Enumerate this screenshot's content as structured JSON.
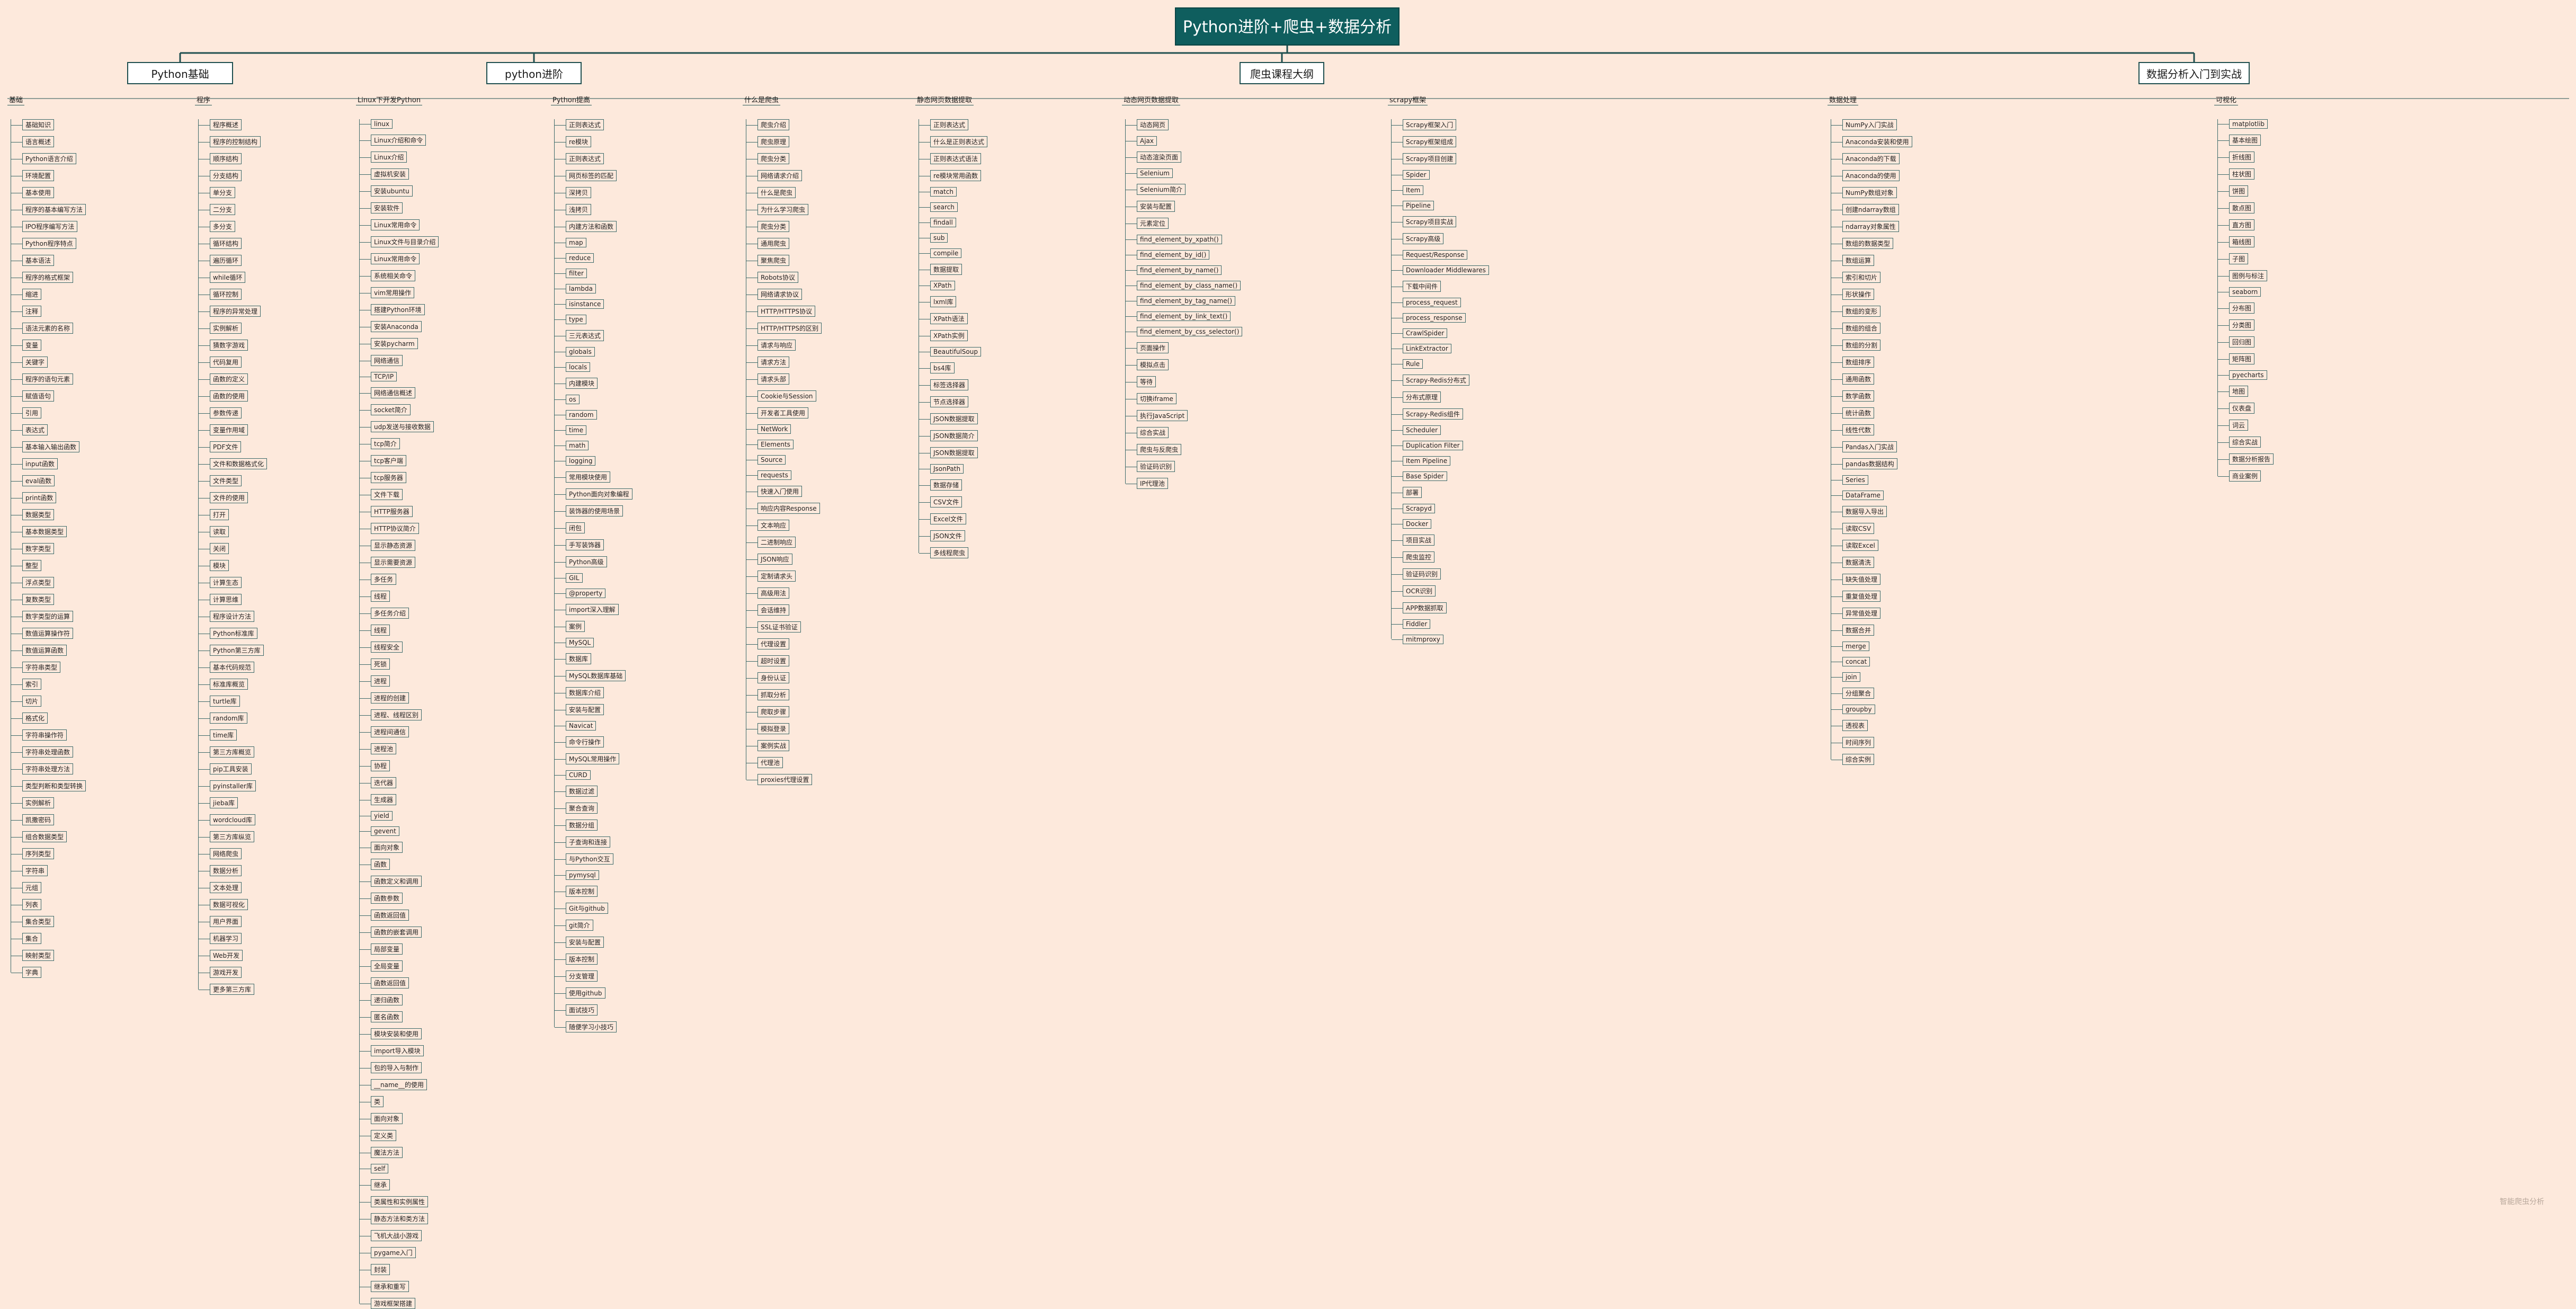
{
  "title": "Python进阶+爬虫+数据分析",
  "topics": [
    {
      "label": "Python基础"
    },
    {
      "label": "python进阶"
    },
    {
      "label": "爬虫课程大纲"
    },
    {
      "label": "数据分析入门到实战"
    }
  ],
  "columns": [
    {
      "head": "基础",
      "items": [
        "基础知识",
        "语言概述",
        "Python语言介绍",
        "环境配置",
        "基本使用",
        "程序的基本编写方法",
        "IPO程序编写方法",
        "Python程序特点",
        "基本语法",
        "程序的格式框架",
        "缩进",
        "注释",
        "语法元素的名称",
        "变量",
        "关键字",
        "程序的语句元素",
        "赋值语句",
        "引用",
        "表达式",
        "基本输入输出函数",
        "input函数",
        "eval函数",
        "print函数",
        "数据类型",
        "基本数据类型",
        "数字类型",
        "整型",
        "浮点类型",
        "复数类型",
        "数字类型的运算",
        "数值运算操作符",
        "数值运算函数",
        "字符串类型",
        "索引",
        "切片",
        "格式化",
        "字符串操作符",
        "字符串处理函数",
        "字符串处理方法",
        "类型判断和类型转换",
        "实例解析",
        "凯撒密码",
        "组合数据类型",
        "序列类型",
        "字符串",
        "元组",
        "列表",
        "集合类型",
        "集合",
        "映射类型",
        "字典"
      ]
    },
    {
      "head": "程序",
      "items": [
        "程序概述",
        "程序的控制结构",
        "顺序结构",
        "分支结构",
        "单分支",
        "二分支",
        "多分支",
        "循环结构",
        "遍历循环",
        "while循环",
        "循环控制",
        "程序的异常处理",
        "实例解析",
        "猜数字游戏",
        "代码复用",
        "函数的定义",
        "函数的使用",
        "参数传递",
        "变量作用域",
        "PDF文件",
        "文件和数据格式化",
        "文件类型",
        "文件的使用",
        "打开",
        "读取",
        "关闭",
        "模块",
        "计算生态",
        "计算思维",
        "程序设计方法",
        "Python标准库",
        "Python第三方库",
        "基本代码规范",
        "标准库概览",
        "turtle库",
        "random库",
        "time库",
        "第三方库概览",
        "pip工具安装",
        "pyinstaller库",
        "jieba库",
        "wordcloud库",
        "第三方库纵览",
        "网络爬虫",
        "数据分析",
        "文本处理",
        "数据可视化",
        "用户界面",
        "机器学习",
        "Web开发",
        "游戏开发",
        "更多第三方库"
      ]
    },
    {
      "head": "Linux下开发Python",
      "items": [
        "linux",
        "Linux介绍和命令",
        "Linux介绍",
        "虚拟机安装",
        "安装ubuntu",
        "安装软件",
        "Linux常用命令",
        "Linux文件与目录介绍",
        "Linux常用命令",
        "系统相关命令",
        "vim常用操作",
        "搭建Python环境",
        "安装Anaconda",
        "安装pycharm",
        "网络通信",
        "TCP/IP",
        "网络通信概述",
        "socket简介",
        "udp发送与接收数据",
        "tcp简介",
        "tcp客户端",
        "tcp服务器",
        "文件下载",
        "HTTP服务器",
        "HTTP协议简介",
        "显示静态资源",
        "显示需要资源",
        "多任务",
        "线程",
        "多任务介绍",
        "线程",
        "线程安全",
        "死锁",
        "进程",
        "进程的创建",
        "进程、线程区别",
        "进程间通信",
        "进程池",
        "协程",
        "迭代器",
        "生成器",
        "yield",
        "gevent",
        "面向对象",
        "函数",
        "函数定义和调用",
        "函数参数",
        "函数返回值",
        "函数的嵌套调用",
        "局部变量",
        "全局变量",
        "函数返回值",
        "递归函数",
        "匿名函数",
        "模块安装和使用",
        "import导入模块",
        "包的导入与制作",
        "__name__的使用",
        "类",
        "面向对象",
        "定义类",
        "魔法方法",
        "self",
        "继承",
        "类属性和实例属性",
        "静态方法和类方法",
        "飞机大战小游戏",
        "pygame入门",
        "封装",
        "继承和重写",
        "游戏框架搭建"
      ]
    },
    {
      "head": "Python提高",
      "items": [
        "正则表达式",
        "re模块",
        "正则表达式",
        "网页标签的匹配",
        "深拷贝",
        "浅拷贝",
        "内建方法和函数",
        "map",
        "reduce",
        "filter",
        "lambda",
        "isinstance",
        "type",
        "三元表达式",
        "globals",
        "locals",
        "内建模块",
        "os",
        "random",
        "time",
        "math",
        "logging",
        "常用模块使用",
        "Python面向对象编程",
        "装饰器的使用场景",
        "闭包",
        "手写装饰器",
        "Python高级",
        "GIL",
        "@property",
        "import深入理解",
        "案例",
        "MySQL",
        "数据库",
        "MySQL数据库基础",
        "数据库介绍",
        "安装与配置",
        "Navicat",
        "命令行操作",
        "MySQL常用操作",
        "CURD",
        "数据过滤",
        "聚合查询",
        "数据分组",
        "子查询和连接",
        "与Python交互",
        "pymysql",
        "版本控制",
        "Git与github",
        "git简介",
        "安装与配置",
        "版本控制",
        "分支管理",
        "使用github",
        "面试技巧",
        "随便学习小技巧"
      ]
    },
    {
      "head": "什么是爬虫",
      "items": [
        "爬虫介绍",
        "爬虫原理",
        "爬虫分类",
        "网络请求介绍",
        "什么是爬虫",
        "为什么学习爬虫",
        "爬虫分类",
        "通用爬虫",
        "聚焦爬虫",
        "Robots协议",
        "网络请求协议",
        "HTTP/HTTPS协议",
        "HTTP/HTTPS的区别",
        "请求与响应",
        "请求方法",
        "请求头部",
        "Cookie与Session",
        "开发者工具使用",
        "NetWork",
        "Elements",
        "Source",
        "requests",
        "快速入门使用",
        "响应内容Response",
        "文本响应",
        "二进制响应",
        "JSON响应",
        "定制请求头",
        "高级用法",
        "会话维持",
        "SSL证书验证",
        "代理设置",
        "超时设置",
        "身份认证",
        "抓取分析",
        "爬取步骤",
        "模拟登录",
        "案例实战",
        "代理池",
        "proxies代理设置"
      ]
    },
    {
      "head": "静态网页数据提取",
      "items": [
        "正则表达式",
        "什么是正则表达式",
        "正则表达式语法",
        "re模块常用函数",
        "match",
        "search",
        "findall",
        "sub",
        "compile",
        "数据提取",
        "XPath",
        "lxml库",
        "XPath语法",
        "XPath实例",
        "BeautifulSoup",
        "bs4库",
        "标签选择器",
        "节点选择器",
        "JSON数据提取",
        "JSON数据简介",
        "JSON数据提取",
        "JsonPath",
        "数据存储",
        "CSV文件",
        "Excel文件",
        "JSON文件",
        "多线程爬虫"
      ]
    },
    {
      "head": "动态网页数据提取",
      "items": [
        "动态网页",
        "Ajax",
        "动态渲染页面",
        "Selenium",
        "Selenium简介",
        "安装与配置",
        "元素定位",
        "find_element_by_xpath()",
        "find_element_by_id()",
        "find_element_by_name()",
        "find_element_by_class_name()",
        "find_element_by_tag_name()",
        "find_element_by_link_text()",
        "find_element_by_css_selector()",
        "页面操作",
        "模拟点击",
        "等待",
        "切换iframe",
        "执行JavaScript",
        "综合实战",
        "爬虫与反爬虫",
        "验证码识别",
        "IP代理池"
      ]
    },
    {
      "head": "scrapy框架",
      "items": [
        "Scrapy框架入门",
        "Scrapy框架组成",
        "Scrapy项目创建",
        "Spider",
        "Item",
        "Pipeline",
        "Scrapy项目实战",
        "Scrapy高级",
        "Request/Response",
        "Downloader Middlewares",
        "下载中间件",
        "process_request",
        "process_response",
        "CrawlSpider",
        "LinkExtractor",
        "Rule",
        "Scrapy-Redis分布式",
        "分布式原理",
        "Scrapy-Redis组件",
        "Scheduler",
        "Duplication Filter",
        "Item Pipeline",
        "Base Spider",
        "部署",
        "Scrapyd",
        "Docker",
        "项目实战",
        "爬虫监控",
        "验证码识别",
        "OCR识别",
        "APP数据抓取",
        "Fiddler",
        "mitmproxy"
      ]
    },
    {
      "head": "数据处理",
      "items": [
        "NumPy入门实战",
        "Anaconda安装和使用",
        "Anaconda的下载",
        "Anaconda的使用",
        "NumPy数组对象",
        "创建ndarray数组",
        "ndarray对象属性",
        "数组的数据类型",
        "数组运算",
        "索引和切片",
        "形状操作",
        "数组的变形",
        "数组的组合",
        "数组的分割",
        "数组排序",
        "通用函数",
        "数学函数",
        "统计函数",
        "线性代数",
        "Pandas入门实战",
        "pandas数据结构",
        "Series",
        "DataFrame",
        "数据导入导出",
        "读取CSV",
        "读取Excel",
        "数据清洗",
        "缺失值处理",
        "重复值处理",
        "异常值处理",
        "数据合并",
        "merge",
        "concat",
        "join",
        "分组聚合",
        "groupby",
        "透视表",
        "时间序列",
        "综合实例"
      ]
    },
    {
      "head": "可视化",
      "items": [
        "matplotlib",
        "基本绘图",
        "折线图",
        "柱状图",
        "饼图",
        "散点图",
        "直方图",
        "箱线图",
        "子图",
        "图例与标注",
        "seaborn",
        "分布图",
        "分类图",
        "回归图",
        "矩阵图",
        "pyecharts",
        "地图",
        "仪表盘",
        "词云",
        "综合实战",
        "数据分析报告",
        "商业案例"
      ]
    }
  ],
  "watermark": "智能爬虫分析"
}
